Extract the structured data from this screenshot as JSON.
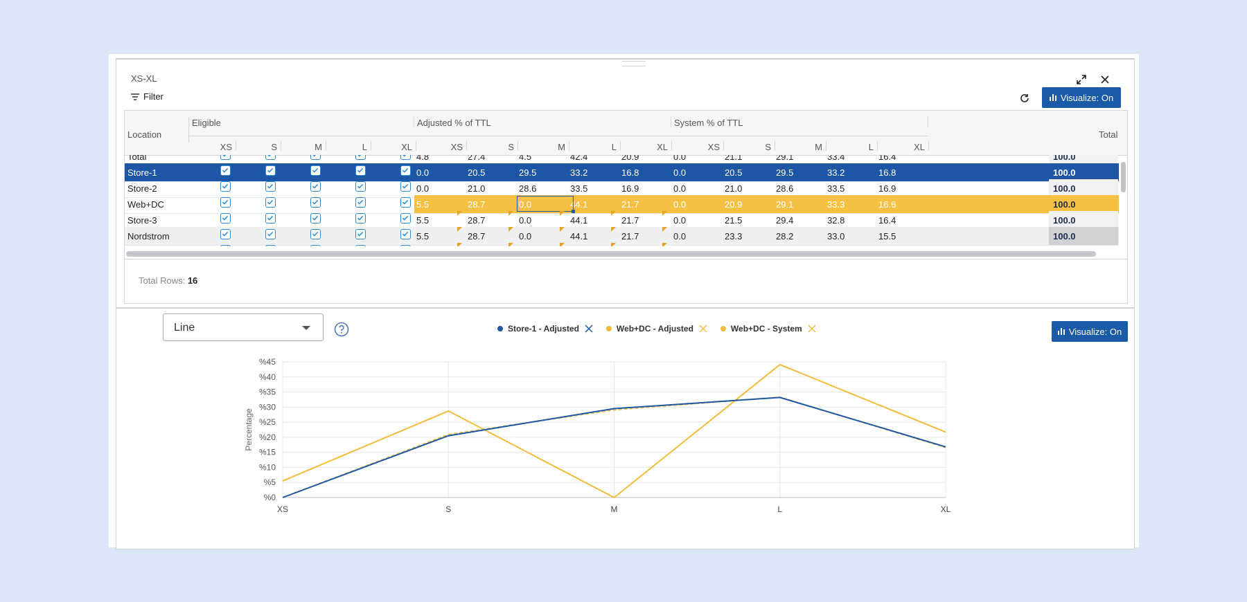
{
  "panel": {
    "title": "XS-XL",
    "filter_label": "Filter",
    "visualize_label": "Visualize: On"
  },
  "table": {
    "header": {
      "location": "Location",
      "eligible": "Eligible",
      "adjusted": "Adjusted % of TTL",
      "system": "System % of TTL",
      "total": "Total",
      "sizes": [
        "XS",
        "S",
        "M",
        "L",
        "XL"
      ]
    },
    "rows": [
      {
        "location": "Total",
        "adjusted": [
          "4.8",
          "27.4",
          "4.5",
          "42.4",
          "20.9"
        ],
        "system": [
          "0.0",
          "21.1",
          "29.1",
          "33.4",
          "16.4"
        ],
        "total": "100.0",
        "state": "normal"
      },
      {
        "location": "Store-1",
        "adjusted": [
          "0.0",
          "20.5",
          "29.5",
          "33.2",
          "16.8"
        ],
        "system": [
          "0.0",
          "20.5",
          "29.5",
          "33.2",
          "16.8"
        ],
        "total": "100.0",
        "state": "selected"
      },
      {
        "location": "Store-2",
        "adjusted": [
          "0.0",
          "21.0",
          "28.6",
          "33.5",
          "16.9"
        ],
        "system": [
          "0.0",
          "21.0",
          "28.6",
          "33.5",
          "16.9"
        ],
        "total": "100.0",
        "state": "normal"
      },
      {
        "location": "Web+DC",
        "adjusted": [
          "5.5",
          "28.7",
          "0.0",
          "44.1",
          "21.7"
        ],
        "system": [
          "0.0",
          "20.9",
          "29.1",
          "33.3",
          "16.6"
        ],
        "total": "100.0",
        "state": "highlight"
      },
      {
        "location": "Store-3",
        "adjusted": [
          "5.5",
          "28.7",
          "0.0",
          "44.1",
          "21.7"
        ],
        "system": [
          "0.0",
          "21.5",
          "29.4",
          "32.8",
          "16.4"
        ],
        "total": "100.0",
        "state": "normal"
      },
      {
        "location": "Nordstrom",
        "adjusted": [
          "5.5",
          "28.7",
          "0.0",
          "44.1",
          "21.7"
        ],
        "system": [
          "0.0",
          "23.3",
          "28.2",
          "33.0",
          "15.5"
        ],
        "total": "100.0",
        "state": "alt"
      }
    ],
    "footer": {
      "label": "Total Rows:",
      "value": "16"
    }
  },
  "chart_controls": {
    "type_select": "Line",
    "visualize_label": "Visualize: On"
  },
  "chart_data": {
    "type": "line",
    "x": [
      "XS",
      "S",
      "M",
      "L",
      "XL"
    ],
    "ylabel": "Percentage",
    "ylim": [
      0,
      45
    ],
    "yticks": [
      "%0",
      "%5",
      "%10",
      "%15",
      "%20",
      "%25",
      "%30",
      "%35",
      "%40",
      "%45"
    ],
    "series": [
      {
        "name": "Store-1 - Adjusted",
        "color": "#1d56a5",
        "dash": false,
        "values": [
          0.0,
          20.5,
          29.5,
          33.2,
          16.8
        ]
      },
      {
        "name": "Web+DC - Adjusted",
        "color": "#f2bd3c",
        "dash": false,
        "values": [
          5.5,
          28.7,
          0.0,
          44.1,
          21.7
        ]
      },
      {
        "name": "Web+DC - System",
        "color": "#f2bd3c",
        "dash": true,
        "values": [
          0.0,
          20.9,
          29.1,
          33.3,
          16.6
        ]
      }
    ]
  }
}
